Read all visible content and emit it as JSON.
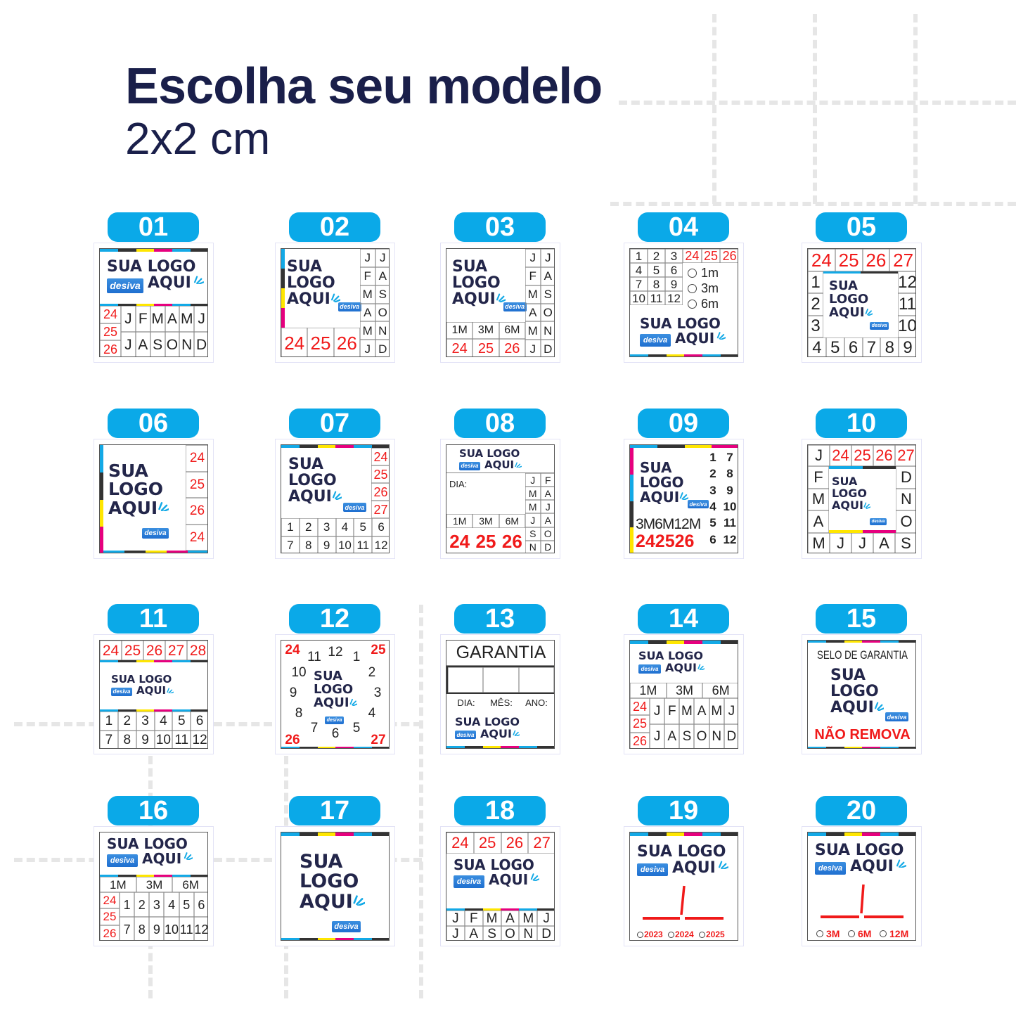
{
  "header": {
    "title": "Escolha seu modelo",
    "subtitle": "2x2 cm"
  },
  "colors": {
    "badge": "#0aa9e8",
    "navy": "#23264a",
    "red": "#f01a1a",
    "cmyk": [
      "#13a9e6",
      "#333333",
      "#ffe600",
      "#e6007e"
    ]
  },
  "brand": "desiva",
  "logo": {
    "sua": "SUA",
    "logo": "LOGO",
    "aqui": "AQUI"
  },
  "common": {
    "years": [
      "24",
      "25",
      "26"
    ],
    "periods": [
      "1M",
      "3M",
      "6M"
    ],
    "months_rows": [
      [
        "J",
        "F",
        "M",
        "A",
        "M",
        "J"
      ],
      [
        "J",
        "A",
        "S",
        "O",
        "N",
        "D"
      ]
    ],
    "months_pairs": [
      [
        "J",
        "J"
      ],
      [
        "F",
        "A"
      ],
      [
        "M",
        "S"
      ],
      [
        "A",
        "O"
      ],
      [
        "M",
        "N"
      ],
      [
        "J",
        "D"
      ]
    ],
    "nums_rows": [
      [
        "1",
        "2",
        "3",
        "4",
        "5",
        "6"
      ],
      [
        "7",
        "8",
        "9",
        "10",
        "11",
        "12"
      ]
    ]
  },
  "cards": [
    {
      "number": "01"
    },
    {
      "number": "02"
    },
    {
      "number": "03"
    },
    {
      "number": "04",
      "nums": [
        [
          "1",
          "2",
          "3"
        ],
        [
          "4",
          "5",
          "6"
        ],
        [
          "7",
          "8",
          "9"
        ],
        [
          "10",
          "11",
          "12"
        ]
      ],
      "options": [
        "1m",
        "3m",
        "6m"
      ]
    },
    {
      "number": "05",
      "top": [
        "24",
        "25",
        "26",
        "27"
      ],
      "left": [
        "1",
        "2",
        "3"
      ],
      "right": [
        "12",
        "11",
        "10"
      ],
      "bottom": [
        "4",
        "5",
        "6",
        "7",
        "8",
        "9"
      ]
    },
    {
      "number": "06",
      "years": [
        "24",
        "25",
        "26",
        "24"
      ]
    },
    {
      "number": "07",
      "years": [
        "24",
        "25",
        "26",
        "27"
      ]
    },
    {
      "number": "08",
      "day_label": "DIA:",
      "pairs": [
        [
          "J",
          "F"
        ],
        [
          "M",
          "A"
        ],
        [
          "M",
          "J"
        ],
        [
          "J",
          "A"
        ],
        [
          "S",
          "O"
        ],
        [
          "N",
          "D"
        ]
      ]
    },
    {
      "number": "09",
      "pairs": [
        [
          "1",
          "7"
        ],
        [
          "2",
          "8"
        ],
        [
          "3",
          "9"
        ],
        [
          "4",
          "10"
        ],
        [
          "5",
          "11"
        ],
        [
          "6",
          "12"
        ]
      ],
      "periods": "3M6M12M",
      "years": "242526"
    },
    {
      "number": "10",
      "top": [
        "J",
        "24",
        "25",
        "26",
        "27"
      ],
      "left": [
        "F",
        "M",
        "A"
      ],
      "right": [
        "D",
        "N",
        "O"
      ],
      "bottom": [
        "M",
        "J",
        "J",
        "A",
        "S"
      ]
    },
    {
      "number": "11",
      "years": [
        "24",
        "25",
        "26",
        "27",
        "28"
      ]
    },
    {
      "number": "12",
      "corners": [
        "24",
        "25",
        "26",
        "27"
      ],
      "clock": [
        "1",
        "2",
        "3",
        "4",
        "5",
        "6",
        "7",
        "8",
        "9",
        "10",
        "11",
        "12"
      ]
    },
    {
      "number": "13",
      "title": "GARANTIA",
      "labels": [
        "DIA:",
        "MÊS:",
        "ANO:"
      ]
    },
    {
      "number": "14"
    },
    {
      "number": "15",
      "title": "SELO DE GARANTIA",
      "warning": "NÃO REMOVA"
    },
    {
      "number": "16"
    },
    {
      "number": "17"
    },
    {
      "number": "18",
      "years": [
        "24",
        "25",
        "26",
        "27"
      ]
    },
    {
      "number": "19",
      "options": [
        "2023",
        "2024",
        "2025"
      ]
    },
    {
      "number": "20",
      "options": [
        "3M",
        "6M",
        "12M"
      ]
    }
  ]
}
